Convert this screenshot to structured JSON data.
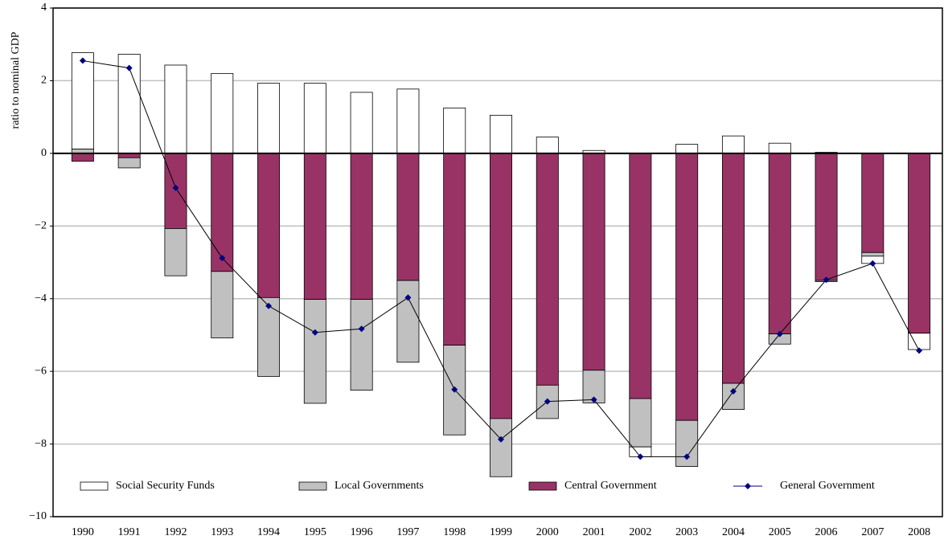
{
  "chart_data": {
    "type": "bar",
    "stacked": true,
    "y_label": "ratio to nominal GDP",
    "categories": [
      "1990",
      "1991",
      "1992",
      "1993",
      "1994",
      "1995",
      "1996",
      "1997",
      "1998",
      "1999",
      "2000",
      "2001",
      "2002",
      "2003",
      "2004",
      "2005",
      "2006",
      "2007",
      "2008"
    ],
    "series": [
      {
        "name": "Social Security Funds",
        "color": "#ffffff",
        "values": [
          2.65,
          2.73,
          2.43,
          2.2,
          1.93,
          1.93,
          1.68,
          1.77,
          1.25,
          1.05,
          0.45,
          0.08,
          -0.27,
          0.25,
          0.48,
          0.28,
          0.03,
          -0.2,
          -0.45
        ]
      },
      {
        "name": "Local Governments",
        "color": "#c0c0c0",
        "values": [
          0.12,
          -0.28,
          -1.3,
          -1.83,
          -2.17,
          -2.86,
          -2.5,
          -2.25,
          -2.47,
          -1.6,
          -0.92,
          -0.9,
          -1.33,
          -1.27,
          -0.72,
          -0.28,
          -0.03,
          -0.1,
          0
        ]
      },
      {
        "name": "Central Government",
        "color": "#993366",
        "values": [
          -0.22,
          -0.12,
          -2.07,
          -3.25,
          -3.97,
          -4.02,
          -4.02,
          -3.5,
          -5.28,
          -7.3,
          -6.38,
          -5.97,
          -6.75,
          -7.35,
          -6.33,
          -4.97,
          -3.5,
          -2.73,
          -4.95
        ]
      },
      {
        "name": "General Government",
        "type": "line",
        "color": "#000080",
        "values": [
          2.55,
          2.35,
          -0.95,
          -2.88,
          -4.2,
          -4.93,
          -4.83,
          -3.97,
          -6.5,
          -7.87,
          -6.83,
          -6.78,
          -8.35,
          -8.35,
          -6.55,
          -4.97,
          -3.48,
          -3.03,
          -5.43
        ]
      }
    ],
    "ylim": [
      -10,
      4
    ],
    "yticks": [
      {
        "value": -10,
        "label": "−10"
      },
      {
        "value": -8,
        "label": "−8"
      },
      {
        "value": -6,
        "label": "−6"
      },
      {
        "value": -4,
        "label": "−4"
      },
      {
        "value": -2,
        "label": "−2"
      },
      0,
      2,
      4
    ],
    "grid": true,
    "legend": "bottom"
  }
}
